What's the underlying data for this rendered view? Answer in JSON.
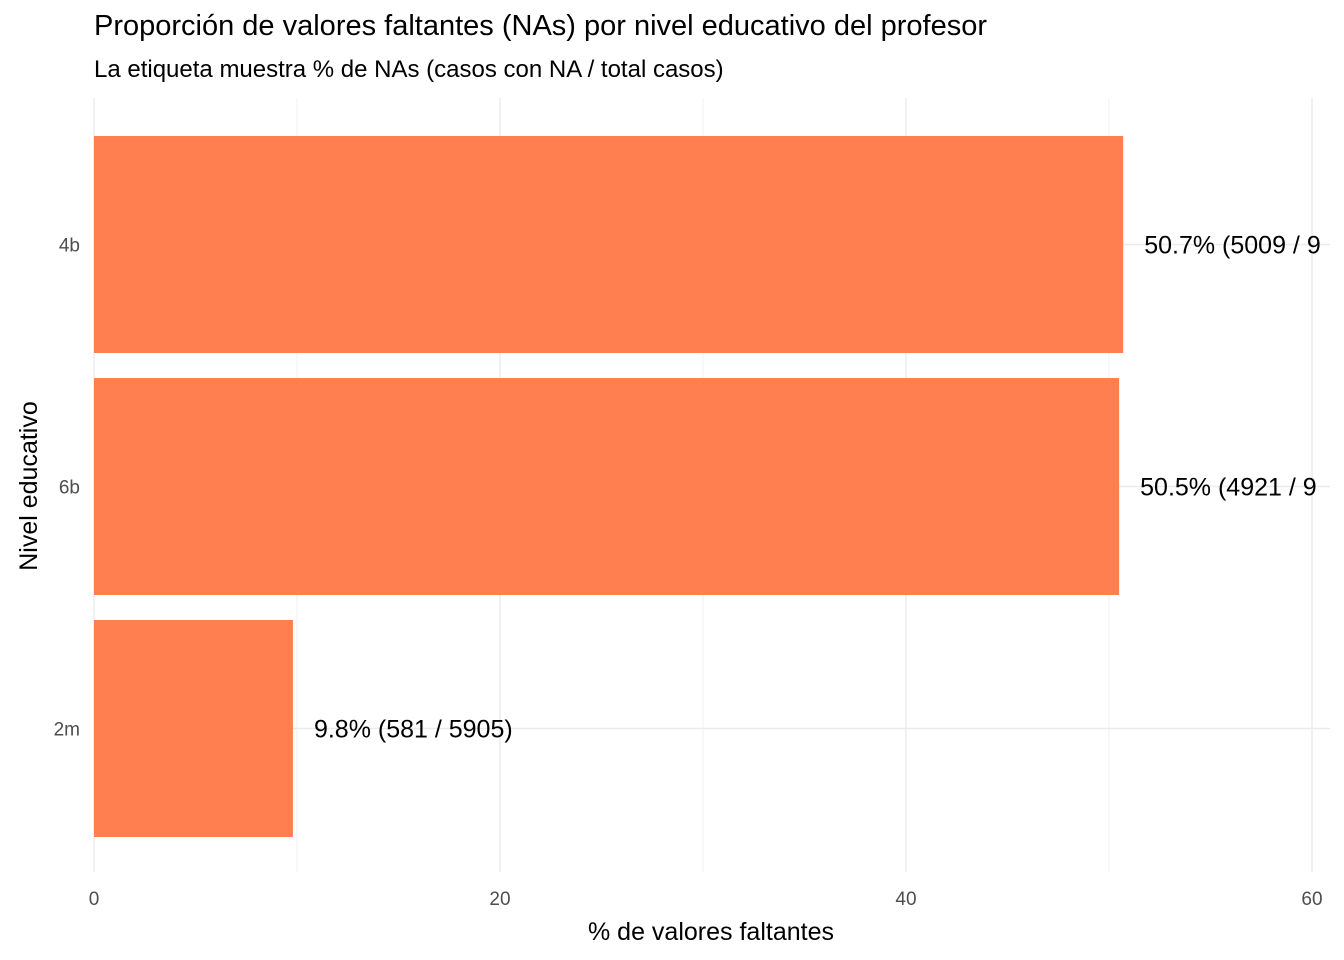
{
  "chart_data": {
    "type": "bar",
    "orientation": "horizontal",
    "title": "Proporción de valores faltantes (NAs) por nivel educativo del profesor",
    "subtitle": "La etiqueta muestra % de NAs (casos con NA / total casos)",
    "xlabel": "% de valores faltantes",
    "ylabel": "Nivel educativo",
    "categories": [
      "4b",
      "6b",
      "2m"
    ],
    "values": [
      50.7,
      50.5,
      9.8
    ],
    "labels": [
      "50.7% (5009 / 9",
      "50.5% (4921 / 9",
      "9.8% (581 / 5905)"
    ],
    "xlim": [
      0,
      60
    ],
    "xticks": [
      "0",
      "20",
      "40",
      "60"
    ],
    "bar_color": "#FF7F50",
    "grid": true,
    "legend": "none"
  }
}
